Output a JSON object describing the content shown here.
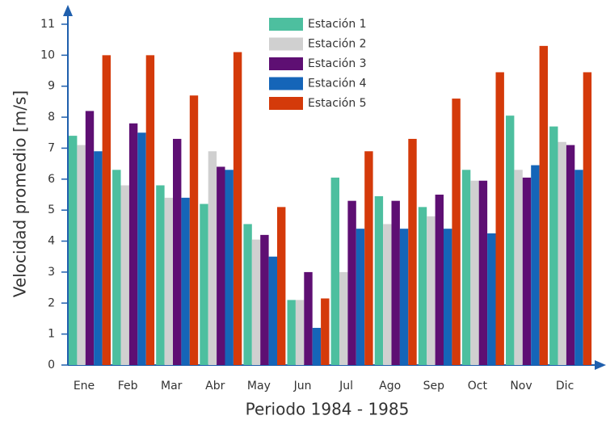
{
  "chart_data": {
    "type": "bar",
    "x_label": "Periodo 1984 - 1985",
    "y_label": "Velocidad promedio [m/s]",
    "categories": [
      "Ene",
      "Feb",
      "Mar",
      "Abr",
      "May",
      "Jun",
      "Jul",
      "Ago",
      "Sep",
      "Oct",
      "Nov",
      "Dic"
    ],
    "series": [
      {
        "name": "Estación 1",
        "color": "#4dbf9f",
        "values": [
          7.4,
          6.3,
          5.8,
          5.2,
          4.55,
          2.1,
          6.05,
          5.45,
          5.1,
          6.3,
          8.05,
          7.7
        ]
      },
      {
        "name": "Estación 2",
        "color": "#d0d0d0",
        "values": [
          7.1,
          5.8,
          5.4,
          6.9,
          4.05,
          2.1,
          3.0,
          4.55,
          4.8,
          5.95,
          6.3,
          7.2
        ]
      },
      {
        "name": "Estación 3",
        "color": "#5e0f73",
        "values": [
          8.2,
          7.8,
          7.3,
          6.4,
          4.2,
          3.0,
          5.3,
          5.3,
          5.5,
          5.95,
          6.05,
          7.1
        ]
      },
      {
        "name": "Estación 4",
        "color": "#1565b8",
        "values": [
          6.9,
          7.5,
          5.4,
          6.3,
          3.5,
          1.2,
          4.4,
          4.4,
          4.4,
          4.25,
          6.45,
          6.3
        ]
      },
      {
        "name": "Estación 5",
        "color": "#d43a0a",
        "values": [
          10.0,
          10.0,
          8.7,
          10.1,
          5.1,
          2.15,
          6.9,
          7.3,
          8.6,
          9.45,
          10.3,
          9.45
        ]
      }
    ],
    "ylim": [
      0,
      11
    ],
    "yticks": [
      0,
      1,
      2,
      3,
      4,
      5,
      6,
      7,
      8,
      9,
      10,
      11
    ],
    "legend": "top"
  }
}
